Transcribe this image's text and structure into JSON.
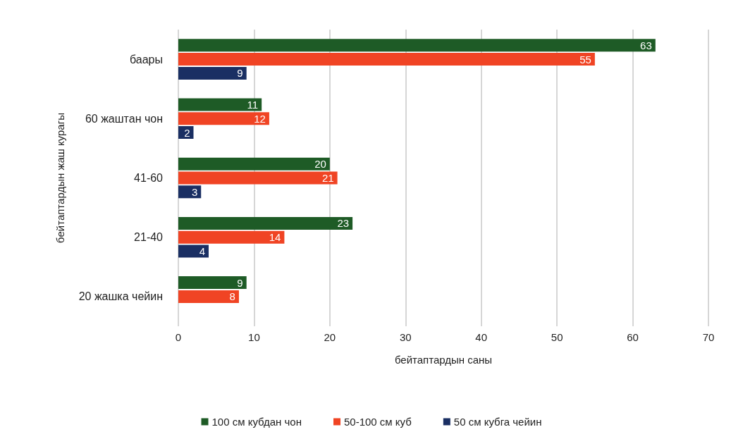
{
  "chart_data": {
    "type": "bar",
    "orientation": "horizontal",
    "xlabel": "бейтаптардын саны",
    "ylabel": "бейтаптардын жаш курагы",
    "categories": [
      "баары",
      "60 жаштан чон",
      "41-60",
      "21-40",
      "20 жашка чейин"
    ],
    "series": [
      {
        "name": "100 см кубдан чон",
        "color": "#1e5b26",
        "values": [
          63,
          11,
          20,
          23,
          9
        ]
      },
      {
        "name": "50-100 см куб",
        "color": "#f04424",
        "values": [
          55,
          12,
          21,
          14,
          8
        ]
      },
      {
        "name": "50 см кубга чейин",
        "color": "#1a2f63",
        "values": [
          9,
          2,
          3,
          4,
          null
        ]
      }
    ],
    "xlim": [
      0,
      70
    ],
    "xticks": [
      0,
      10,
      20,
      30,
      40,
      50,
      60,
      70
    ],
    "grid": "x",
    "legend": "bottom",
    "data_labels": true
  }
}
